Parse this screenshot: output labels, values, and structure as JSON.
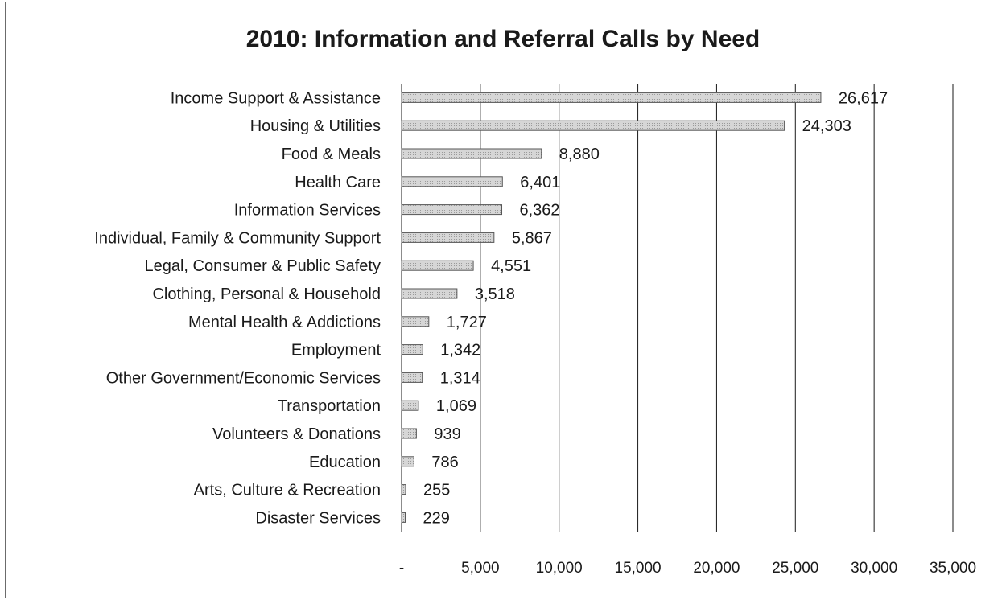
{
  "chart_data": {
    "type": "bar",
    "orientation": "horizontal",
    "title": "2010: Information and Referral Calls by Need",
    "categories": [
      "Income Support & Assistance",
      "Housing & Utilities",
      "Food & Meals",
      "Health Care",
      "Information Services",
      "Individual, Family & Community Support",
      "Legal, Consumer & Public Safety",
      "Clothing, Personal & Household",
      "Mental Health & Addictions",
      "Employment",
      "Other Government/Economic Services",
      "Transportation",
      "Volunteers & Donations",
      "Education",
      "Arts, Culture & Recreation",
      "Disaster Services"
    ],
    "values": [
      26617,
      24303,
      8880,
      6401,
      6362,
      5867,
      4551,
      3518,
      1727,
      1342,
      1314,
      1069,
      939,
      786,
      255,
      229
    ],
    "value_labels": [
      "26,617",
      "24,303",
      "8,880",
      "6,401",
      "6,362",
      "5,867",
      "4,551",
      "3,518",
      "1,727",
      "1,342",
      "1,314",
      "1,069",
      "939",
      "786",
      "255",
      "229"
    ],
    "xlim": [
      0,
      35000
    ],
    "x_ticks": [
      0,
      5000,
      10000,
      15000,
      20000,
      25000,
      30000,
      35000
    ],
    "x_tick_labels": [
      "-",
      "5,000",
      "10,000",
      "15,000",
      "20,000",
      "25,000",
      "30,000",
      "35,000"
    ],
    "grid": "vertical",
    "legend": "none",
    "bar_color": "#c8c8c8",
    "bar_edge_color": "#555555"
  }
}
